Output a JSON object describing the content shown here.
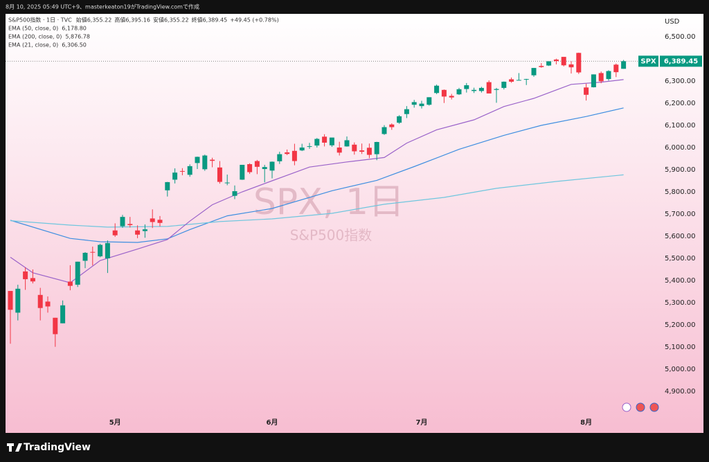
{
  "header": {
    "caption": "8月 10, 2025 05:49 UTC+9、masterkeaton19がTradingView.comで作成"
  },
  "footer": {
    "brand": "TradingView"
  },
  "chart_data": {
    "type": "candlestick",
    "title": "S&P500指数 · 1日 · TVC",
    "ohlc_legend": [
      {
        "label": "始値",
        "value": "6,355.22"
      },
      {
        "label": "高値",
        "value": "6,395.16"
      },
      {
        "label": "安値",
        "value": "6,355.22"
      },
      {
        "label": "終値",
        "value": "6,389.45"
      }
    ],
    "change": "+49.45 (+0.78%)",
    "watermark": {
      "symbol": "SPX, 1日",
      "name": "S&P500指数"
    },
    "currency": "USD",
    "price_badge": {
      "symbol": "SPX",
      "label": "6,389.45"
    },
    "up_color": "#089981",
    "down_color": "#f23645",
    "categories": [
      null,
      null,
      null,
      null,
      null,
      null,
      null,
      null,
      null,
      null,
      null,
      null,
      null,
      null,
      "5月",
      null,
      null,
      null,
      null,
      null,
      null,
      null,
      null,
      null,
      null,
      null,
      null,
      null,
      null,
      null,
      null,
      null,
      null,
      null,
      null,
      "6月",
      null,
      null,
      null,
      null,
      null,
      null,
      null,
      null,
      null,
      null,
      null,
      null,
      null,
      null,
      null,
      null,
      null,
      null,
      null,
      "7月",
      null,
      null,
      null,
      null,
      null,
      null,
      null,
      null,
      null,
      null,
      null,
      null,
      null,
      null,
      null,
      null,
      null,
      null,
      null,
      null,
      null,
      "8月",
      null,
      null,
      null,
      null,
      null
    ],
    "open": [
      5353,
      5255,
      5441,
      5411,
      5335,
      5305,
      5232,
      5207,
      5395,
      5381,
      5489,
      5529,
      5509,
      5500,
      5626,
      5645,
      5655,
      5626,
      5623,
      5680,
      5674,
      5807,
      5855,
      5894,
      5877,
      5930,
      5902,
      5945,
      5910,
      5842,
      5782,
      5855,
      5925,
      5939,
      5903,
      5896,
      5938,
      5978,
      5985,
      5987,
      6004,
      6009,
      6049,
      6010,
      6000,
      6005,
      6013,
      5987,
      5999,
      5970,
      6061,
      6104,
      6112,
      6151,
      6193,
      6187,
      6193,
      6246,
      6260,
      6233,
      6240,
      6264,
      6255,
      6255,
      6295,
      6260,
      6269,
      6308,
      6304,
      6306,
      6326,
      6368,
      6370,
      6397,
      6409,
      6375,
      6427,
      6271,
      6272,
      6336,
      6309,
      6374,
      6355.22
    ],
    "high": [
      5353,
      5381,
      5459,
      5450,
      5367,
      5328,
      5232,
      5310,
      5469,
      5485,
      5528,
      5553,
      5566,
      5581,
      5658,
      5696,
      5687,
      5649,
      5653,
      5721,
      5691,
      5845,
      5906,
      5907,
      5924,
      5959,
      5968,
      5954,
      5939,
      5878,
      5829,
      5922,
      5929,
      5944,
      5922,
      5937,
      5981,
      5991,
      6017,
      6017,
      6021,
      6043,
      6060,
      6045,
      6026,
      6050,
      6023,
      6018,
      6018,
      6026,
      6101,
      6109,
      6146,
      6187,
      6215,
      6211,
      6227,
      6284,
      6262,
      6242,
      6269,
      6291,
      6270,
      6274,
      6303,
      6269,
      6298,
      6316,
      6336,
      6310,
      6359,
      6381,
      6389,
      6401,
      6409,
      6390,
      6428,
      6288,
      6330,
      6343,
      6349,
      6379,
      6395.16
    ],
    "low": [
      5115,
      5220,
      5358,
      5387,
      5220,
      5255,
      5101,
      5207,
      5356,
      5371,
      5456,
      5468,
      5505,
      5434,
      5597,
      5638,
      5639,
      5591,
      5593,
      5637,
      5644,
      5779,
      5838,
      5875,
      5868,
      5903,
      5895,
      5911,
      5837,
      5830,
      5767,
      5854,
      5881,
      5880,
      5843,
      5861,
      5926,
      5966,
      5920,
      5984,
      5994,
      6000,
      6005,
      6003,
      5964,
      6004,
      5968,
      5971,
      5952,
      5943,
      6057,
      6080,
      6107,
      6133,
      6180,
      6176,
      6189,
      6241,
      6201,
      6217,
      6237,
      6248,
      6246,
      6248,
      6244,
      6202,
      6262,
      6292,
      6303,
      6282,
      6319,
      6360,
      6368,
      6375,
      6366,
      6334,
      6332,
      6212,
      6271,
      6290,
      6302,
      6318,
      6355.22
    ],
    "close": [
      5268,
      5363,
      5406,
      5396,
      5276,
      5283,
      5158,
      5288,
      5376,
      5485,
      5525,
      5528,
      5561,
      5569,
      5604,
      5687,
      5650,
      5607,
      5631,
      5664,
      5660,
      5844,
      5887,
      5892,
      5916,
      5958,
      5964,
      5940,
      5845,
      5842,
      5803,
      5922,
      5889,
      5913,
      5912,
      5936,
      5970,
      5971,
      5939,
      6000,
      6006,
      6039,
      6022,
      6045,
      5977,
      6033,
      5983,
      5981,
      5967,
      6025,
      6092,
      6092,
      6141,
      6173,
      6205,
      6198,
      6227,
      6279,
      6230,
      6226,
      6263,
      6281,
      6260,
      6269,
      6244,
      6264,
      6297,
      6297,
      6305,
      6309,
      6359,
      6363,
      6389,
      6390,
      6371,
      6362,
      6339,
      6238,
      6330,
      6299,
      6345,
      6340,
      6389.45
    ],
    "overlays": [
      {
        "name": "EMA (50, close, 0)",
        "last_value_label": "6,178.80",
        "color": "#3d8ee0",
        "x": [
          0,
          8,
          12,
          17,
          21,
          24,
          29,
          35,
          43,
          49,
          54,
          60,
          66,
          71,
          77,
          82
        ],
        "values": [
          5672,
          5590,
          5575,
          5572,
          5588,
          5630,
          5692,
          5725,
          5805,
          5852,
          5914,
          5992,
          6055,
          6100,
          6140,
          6178.8
        ]
      },
      {
        "name": "EMA (200, close, 0)",
        "last_value_label": "5,876.78",
        "color": "#6ec6de",
        "x": [
          0,
          8,
          13,
          21,
          28,
          35,
          43,
          50,
          58,
          65,
          73,
          82
        ],
        "values": [
          5670,
          5650,
          5641,
          5644,
          5666,
          5678,
          5703,
          5744,
          5775,
          5816,
          5847,
          5876.78
        ]
      },
      {
        "name": "EMA (21, close, 0)",
        "last_value_label": "6,306.50",
        "color": "#9a62c9",
        "x": [
          0,
          3,
          8,
          12,
          17,
          21,
          24,
          27,
          31,
          35,
          40,
          45,
          50,
          53,
          57,
          62,
          66,
          70,
          75,
          79,
          82
        ],
        "values": [
          5505,
          5435,
          5390,
          5490,
          5542,
          5585,
          5668,
          5742,
          5800,
          5850,
          5912,
          5935,
          5955,
          6020,
          6080,
          6125,
          6185,
          6222,
          6285,
          6295,
          6306.5
        ]
      }
    ],
    "ylim": [
      4806.25,
      6603.125
    ],
    "yticks": [
      {
        "value": 4900,
        "label": "4,900.00"
      },
      {
        "value": 5000,
        "label": "5,000.00"
      },
      {
        "value": 5100,
        "label": "5,100.00"
      },
      {
        "value": 5200,
        "label": "5,200.00"
      },
      {
        "value": 5300,
        "label": "5,300.00"
      },
      {
        "value": 5400,
        "label": "5,400.00"
      },
      {
        "value": 5500,
        "label": "5,500.00"
      },
      {
        "value": 5600,
        "label": "5,600.00"
      },
      {
        "value": 5700,
        "label": "5,700.00"
      },
      {
        "value": 5800,
        "label": "5,800.00"
      },
      {
        "value": 5900,
        "label": "5,900.00"
      },
      {
        "value": 6000,
        "label": "6,000.00"
      },
      {
        "value": 6100,
        "label": "6,100.00"
      },
      {
        "value": 6200,
        "label": "6,200.00"
      },
      {
        "value": 6300,
        "label": "6,300.00"
      },
      {
        "value": 6400,
        "label": "6,400.00"
      },
      {
        "value": 6500,
        "label": "6,500.00"
      }
    ],
    "grid": false
  }
}
